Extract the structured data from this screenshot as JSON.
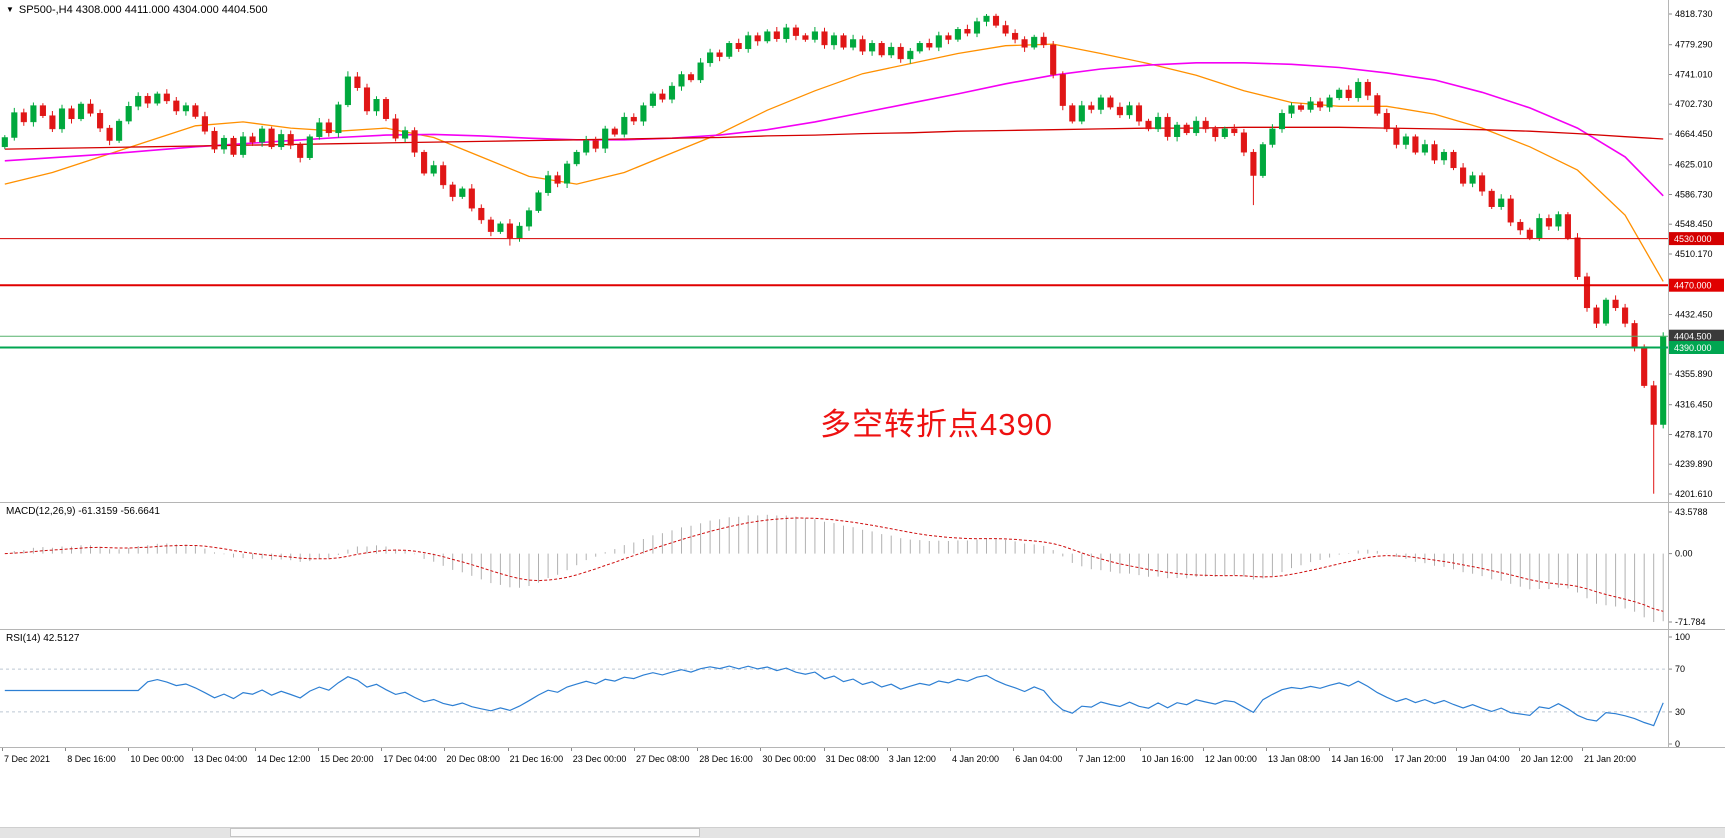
{
  "header": {
    "collapse_icon": "▼",
    "symbol_line": "SP500-,H4 4308.000 4411.000 4304.000 4404.500"
  },
  "indicator_labels": {
    "macd": "MACD(12,26,9) -61.3159 -56.6641",
    "rsi": "RSI(14) 42.5127"
  },
  "annotation": {
    "text": "多空转折点4390",
    "color": "#ee1111"
  },
  "chart_data": {
    "type": "candlestick",
    "symbol": "SP500-",
    "timeframe": "H4",
    "last_ohlc": {
      "open": 4308.0,
      "high": 4411.0,
      "low": 4304.0,
      "close": 4404.5
    },
    "price_axis": {
      "ticks": [
        4818.73,
        4779.29,
        4741.01,
        4702.73,
        4664.45,
        4625.01,
        4586.73,
        4548.45,
        4510.17,
        4432.45,
        4355.89,
        4316.45,
        4278.17,
        4239.89,
        4201.61
      ],
      "tick_decimals": 3
    },
    "time_axis": {
      "labels": [
        "7 Dec 2021",
        "8 Dec 16:00",
        "10 Dec 00:00",
        "13 Dec 04:00",
        "14 Dec 12:00",
        "15 Dec 20:00",
        "17 Dec 04:00",
        "20 Dec 08:00",
        "21 Dec 16:00",
        "23 Dec 00:00",
        "27 Dec 08:00",
        "28 Dec 16:00",
        "30 Dec 00:00",
        "31 Dec 08:00",
        "3 Jan 12:00",
        "4 Jan 20:00",
        "6 Jan 04:00",
        "7 Jan 12:00",
        "10 Jan 16:00",
        "12 Jan 00:00",
        "13 Jan 08:00",
        "14 Jan 16:00",
        "17 Jan 20:00",
        "19 Jan 04:00",
        "20 Jan 12:00",
        "21 Jan 20:00"
      ]
    },
    "candles": {
      "first_open": 4648,
      "closes": [
        4660,
        4692,
        4680,
        4701,
        4688,
        4671,
        4697,
        4684,
        4703,
        4691,
        4672,
        4656,
        4681,
        4700,
        4713,
        4704,
        4716,
        4707,
        4694,
        4701,
        4687,
        4668,
        4645,
        4659,
        4638,
        4661,
        4654,
        4671,
        4648,
        4664,
        4650,
        4634,
        4661,
        4679,
        4666,
        4702,
        4738,
        4724,
        4694,
        4709,
        4684,
        4659,
        4669,
        4641,
        4614,
        4624,
        4599,
        4584,
        4594,
        4569,
        4554,
        4539,
        4549,
        4531,
        4546,
        4566,
        4589,
        4611,
        4601,
        4626,
        4641,
        4656,
        4646,
        4671,
        4664,
        4686,
        4681,
        4701,
        4716,
        4709,
        4726,
        4741,
        4734,
        4756,
        4769,
        4764,
        4781,
        4774,
        4791,
        4784,
        4796,
        4787,
        4801,
        4791,
        4786,
        4796,
        4779,
        4791,
        4776,
        4786,
        4771,
        4781,
        4766,
        4776,
        4761,
        4771,
        4781,
        4776,
        4791,
        4786,
        4799,
        4794,
        4809,
        4816,
        4804,
        4794,
        4786,
        4776,
        4789,
        4779,
        4741,
        4701,
        4681,
        4701,
        4696,
        4711,
        4699,
        4689,
        4701,
        4681,
        4671,
        4686,
        4661,
        4676,
        4666,
        4681,
        4671,
        4661,
        4671,
        4666,
        4641,
        4611,
        4651,
        4671,
        4691,
        4701,
        4696,
        4706,
        4699,
        4711,
        4721,
        4711,
        4731,
        4714,
        4691,
        4671,
        4651,
        4661,
        4641,
        4651,
        4631,
        4641,
        4621,
        4601,
        4611,
        4591,
        4571,
        4581,
        4551,
        4541,
        4531,
        4556,
        4546,
        4561,
        4531,
        4481,
        4441,
        4421,
        4451,
        4441,
        4421,
        4391,
        4341,
        4291,
        4404.5
      ],
      "high_overrides": {
        "36": 4745,
        "103": 4818.7
      },
      "low_overrides": {
        "53": 4521,
        "131": 4573,
        "173": 4202
      }
    },
    "moving_averages": [
      {
        "name": "fast-orange",
        "color": "#ff9000",
        "width": 1.3,
        "sample_step": 5,
        "values": [
          4600,
          4615,
          4635,
          4655,
          4675,
          4680,
          4672,
          4668,
          4672,
          4660,
          4635,
          4610,
          4600,
          4615,
          4640,
          4665,
          4695,
          4720,
          4742,
          4755,
          4768,
          4778,
          4780,
          4768,
          4755,
          4740,
          4720,
          4705,
          4700,
          4700,
          4690,
          4672,
          4648,
          4618,
          4560,
          4475
        ]
      },
      {
        "name": "medium-magenta",
        "color": "#f400f4",
        "width": 1.6,
        "sample_step": 5,
        "values": [
          4630,
          4634,
          4638,
          4643,
          4648,
          4652,
          4656,
          4660,
          4663,
          4664,
          4662,
          4659,
          4657,
          4657,
          4659,
          4663,
          4670,
          4680,
          4692,
          4704,
          4716,
          4729,
          4740,
          4748,
          4753,
          4756,
          4756,
          4754,
          4750,
          4743,
          4734,
          4718,
          4698,
          4672,
          4635,
          4585
        ]
      },
      {
        "name": "slow-red",
        "color": "#d40000",
        "width": 1.3,
        "sample_step": 5,
        "values": [
          4645,
          4646,
          4647,
          4648,
          4649,
          4650,
          4651,
          4652,
          4653,
          4654,
          4655,
          4656,
          4657,
          4658,
          4659,
          4660,
          4662,
          4663,
          4665,
          4666,
          4668,
          4669,
          4670,
          4671,
          4672,
          4672,
          4673,
          4673,
          4673,
          4672,
          4671,
          4670,
          4668,
          4665,
          4661,
          4658
        ]
      }
    ],
    "price_lines": [
      {
        "label": "4530.000",
        "price": 4530,
        "line_color": "#d40000",
        "box_color": "#d40000",
        "width": 1
      },
      {
        "label": "4470.000",
        "price": 4470,
        "line_color": "#e00000",
        "box_color": "#e00000",
        "width": 2
      },
      {
        "label": "4404.500",
        "price": 4404.5,
        "line_color": "#57b26d",
        "box_color": "#3a3a3a",
        "width": 1
      },
      {
        "label": "4390.000",
        "price": 4390,
        "line_color": "#00a651",
        "box_color": "#00a651",
        "width": 2
      }
    ],
    "macd": {
      "fast": 12,
      "slow": 26,
      "signal": 9,
      "last_macd": -61.3159,
      "last_signal": -56.6641,
      "axis": [
        {
          "v": 43.5788,
          "label": "43.5788"
        },
        {
          "v": 0,
          "label": "0.00"
        },
        {
          "v": -71.784,
          "label": "-71.784"
        }
      ],
      "histogram_color": "#b0b0b0",
      "signal_color": "#cf0e0e"
    },
    "rsi": {
      "period": 14,
      "last": 42.5127,
      "axis": [
        {
          "v": 100,
          "label": "100"
        },
        {
          "v": 70,
          "label": "70"
        },
        {
          "v": 30,
          "label": "30"
        },
        {
          "v": 0,
          "label": "0"
        }
      ],
      "levels": [
        70,
        30
      ],
      "line_color": "#2d7fd3",
      "level_color": "#bcc8d4"
    },
    "colors": {
      "up": "#00a83d",
      "down": "#e01616",
      "background": "#ffffff",
      "panel_border": "#b5b5b5",
      "axis_text": "#000000"
    }
  }
}
